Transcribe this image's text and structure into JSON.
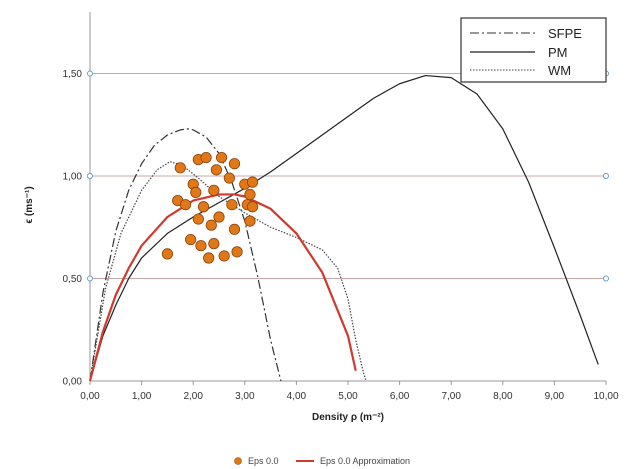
{
  "chart_data": {
    "type": "line",
    "title": "",
    "xlabel": "Density ρ (m⁻²)",
    "ylabel": "ϵ (ms⁻¹)",
    "xlim": [
      0,
      10
    ],
    "ylim": [
      0,
      1.8
    ],
    "x_ticks": [
      "0,00",
      "1,00",
      "2,00",
      "3,00",
      "4,00",
      "5,00",
      "6,00",
      "7,00",
      "8,00",
      "9,00",
      "10,00"
    ],
    "y_ticks": [
      {
        "value": 0,
        "label": "0,00"
      },
      {
        "value": 0.5,
        "label": "0,50"
      },
      {
        "value": 1.0,
        "label": "1,00"
      },
      {
        "value": 1.5,
        "label": "1,50"
      }
    ],
    "grid": {
      "horizontal": true,
      "vertical": false,
      "color": "#c8a8a8"
    },
    "legend_top": {
      "placement": "top-right",
      "entries": [
        {
          "name": "SFPE",
          "style": "dashdot",
          "color": "#333333"
        },
        {
          "name": "PM",
          "style": "solid",
          "color": "#222222"
        },
        {
          "name": "WM",
          "style": "dotted",
          "color": "#444444"
        }
      ]
    },
    "legend_bottom": {
      "placement": "bottom",
      "entries": [
        {
          "name": "Eps 0.0",
          "style": "marker",
          "color": "#e07818"
        },
        {
          "name": "Eps 0.0 Approximation",
          "style": "solid",
          "color": "#d03a2e"
        }
      ]
    },
    "series": [
      {
        "name": "SFPE",
        "style": "dashdot",
        "color": "#333333",
        "x": [
          0,
          0.25,
          0.5,
          0.75,
          1.0,
          1.25,
          1.5,
          1.75,
          1.9,
          2.0,
          2.25,
          2.5,
          2.75,
          3.0,
          3.25,
          3.5,
          3.7
        ],
        "y": [
          0,
          0.43,
          0.73,
          0.93,
          1.06,
          1.15,
          1.2,
          1.225,
          1.23,
          1.225,
          1.19,
          1.11,
          0.97,
          0.78,
          0.51,
          0.2,
          0
        ]
      },
      {
        "name": "PM",
        "style": "solid",
        "color": "#222222",
        "x": [
          0,
          0.25,
          0.5,
          0.75,
          1.0,
          1.5,
          2.0,
          2.5,
          3.0,
          3.5,
          4.0,
          4.5,
          5.0,
          5.5,
          6.0,
          6.5,
          7.0,
          7.5,
          8.0,
          8.5,
          9.0,
          9.5,
          9.85
        ],
        "y": [
          0,
          0.22,
          0.37,
          0.5,
          0.6,
          0.72,
          0.8,
          0.87,
          0.94,
          1.02,
          1.11,
          1.2,
          1.29,
          1.38,
          1.45,
          1.49,
          1.48,
          1.4,
          1.23,
          0.97,
          0.65,
          0.32,
          0.08
        ]
      },
      {
        "name": "WM",
        "style": "dotted",
        "color": "#444444",
        "x": [
          0,
          0.3,
          0.6,
          1.0,
          1.3,
          1.55,
          1.8,
          2.1,
          2.5,
          3.0,
          3.5,
          4.0,
          4.5,
          4.8,
          5.0,
          5.15,
          5.3,
          5.35
        ],
        "y": [
          0,
          0.45,
          0.72,
          0.93,
          1.03,
          1.07,
          1.05,
          0.99,
          0.9,
          0.82,
          0.75,
          0.7,
          0.64,
          0.55,
          0.4,
          0.2,
          0.04,
          0
        ]
      },
      {
        "name": "Eps 0.0 Approximation",
        "style": "solid",
        "color": "#d03a2e",
        "x": [
          0,
          0.25,
          0.5,
          0.75,
          1.0,
          1.5,
          2.0,
          2.5,
          2.8,
          3.0,
          3.5,
          4.0,
          4.5,
          5.0,
          5.15
        ],
        "y": [
          0,
          0.24,
          0.42,
          0.55,
          0.66,
          0.8,
          0.88,
          0.91,
          0.91,
          0.9,
          0.84,
          0.72,
          0.53,
          0.22,
          0.05
        ]
      }
    ],
    "scatter": {
      "name": "Eps 0.0",
      "color": "#e07818",
      "points": [
        [
          1.5,
          0.62
        ],
        [
          1.7,
          0.88
        ],
        [
          1.75,
          1.04
        ],
        [
          1.85,
          0.86
        ],
        [
          1.95,
          0.69
        ],
        [
          2.0,
          0.96
        ],
        [
          2.05,
          0.92
        ],
        [
          2.1,
          1.08
        ],
        [
          2.1,
          0.79
        ],
        [
          2.15,
          0.66
        ],
        [
          2.2,
          0.85
        ],
        [
          2.25,
          1.09
        ],
        [
          2.3,
          0.6
        ],
        [
          2.35,
          0.76
        ],
        [
          2.4,
          0.93
        ],
        [
          2.4,
          0.67
        ],
        [
          2.45,
          1.03
        ],
        [
          2.5,
          0.8
        ],
        [
          2.55,
          1.09
        ],
        [
          2.6,
          0.61
        ],
        [
          2.7,
          0.99
        ],
        [
          2.75,
          0.86
        ],
        [
          2.8,
          1.06
        ],
        [
          2.8,
          0.74
        ],
        [
          2.85,
          0.63
        ],
        [
          3.0,
          0.96
        ],
        [
          3.05,
          0.86
        ],
        [
          3.1,
          0.78
        ],
        [
          3.1,
          0.91
        ],
        [
          3.15,
          0.97
        ],
        [
          3.15,
          0.85
        ]
      ]
    }
  }
}
